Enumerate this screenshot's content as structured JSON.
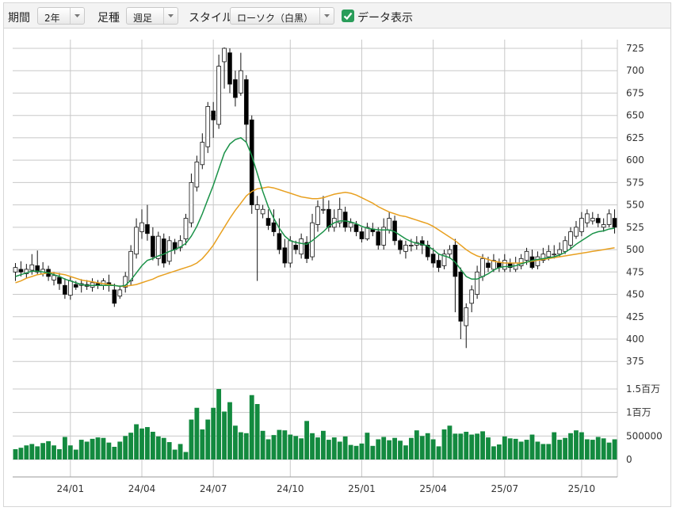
{
  "toolbar": {
    "period_label": "期間",
    "period_value": "2年",
    "interval_label": "足種",
    "interval_value": "週足",
    "style_label": "スタイル",
    "style_value": "ローソク（白黒）",
    "data_display_label": "データ表示",
    "data_display_checked": true
  },
  "colors": {
    "up_candle": "#ffffff",
    "down_candle": "#000000",
    "ma_short": "#1a9248",
    "ma_long": "#e8a020",
    "volume": "#138a3f",
    "grid": "#c8c8c8"
  },
  "chart_data": {
    "type": "candlestick",
    "price_axis": {
      "ticks": [
        725,
        700,
        675,
        650,
        625,
        600,
        575,
        550,
        525,
        500,
        475,
        450,
        425,
        400,
        375
      ]
    },
    "volume_axis": {
      "tick_labels": [
        "1.5百万",
        "1百万",
        "500000",
        "0"
      ],
      "tick_values": [
        1500000,
        1000000,
        500000,
        0
      ]
    },
    "x_tick_labels": [
      "24/01",
      "24/04",
      "24/07",
      "24/10",
      "25/01",
      "25/04",
      "25/07",
      "25/10"
    ],
    "x_tick_index": [
      10,
      23,
      36,
      50,
      63,
      76,
      89,
      103
    ],
    "candles": [
      [
        475,
        480,
        485,
        465
      ],
      [
        478,
        475,
        487,
        470
      ],
      [
        473,
        478,
        484,
        468
      ],
      [
        477,
        483,
        495,
        472
      ],
      [
        482,
        475,
        499,
        472
      ],
      [
        473,
        478,
        486,
        470
      ],
      [
        478,
        470,
        482,
        465
      ],
      [
        466,
        471,
        475,
        460
      ],
      [
        469,
        462,
        474,
        455
      ],
      [
        460,
        450,
        468,
        445
      ],
      [
        449,
        465,
        470,
        444
      ],
      [
        461,
        458,
        465,
        455
      ],
      [
        460,
        462,
        467,
        452
      ],
      [
        461,
        459,
        466,
        455
      ],
      [
        458,
        463,
        468,
        453
      ],
      [
        462,
        460,
        466,
        456
      ],
      [
        460,
        465,
        468,
        455
      ],
      [
        463,
        460,
        472,
        453
      ],
      [
        455,
        440,
        462,
        436
      ],
      [
        448,
        455,
        460,
        445
      ],
      [
        458,
        470,
        475,
        452
      ],
      [
        465,
        498,
        505,
        460
      ],
      [
        495,
        525,
        535,
        490
      ],
      [
        520,
        530,
        545,
        512
      ],
      [
        528,
        518,
        550,
        510
      ],
      [
        515,
        492,
        525,
        488
      ],
      [
        490,
        515,
        520,
        482
      ],
      [
        512,
        485,
        518,
        480
      ],
      [
        487,
        510,
        515,
        483
      ],
      [
        508,
        500,
        512,
        495
      ],
      [
        502,
        510,
        516,
        498
      ],
      [
        512,
        535,
        540,
        505
      ],
      [
        530,
        575,
        585,
        525
      ],
      [
        570,
        598,
        605,
        565
      ],
      [
        595,
        620,
        630,
        590
      ],
      [
        615,
        660,
        665,
        608
      ],
      [
        655,
        645,
        665,
        625
      ],
      [
        640,
        705,
        718,
        635
      ],
      [
        710,
        725,
        726,
        680
      ],
      [
        720,
        685,
        725,
        675
      ],
      [
        690,
        670,
        700,
        660
      ],
      [
        675,
        700,
        720,
        672
      ],
      [
        690,
        640,
        695,
        620
      ],
      [
        645,
        550,
        650,
        540
      ],
      [
        545,
        550,
        560,
        465
      ],
      [
        540,
        545,
        550,
        535
      ],
      [
        535,
        527,
        545,
        522
      ],
      [
        530,
        520,
        545,
        515
      ],
      [
        518,
        500,
        535,
        495
      ],
      [
        502,
        485,
        512,
        480
      ],
      [
        485,
        510,
        515,
        480
      ],
      [
        505,
        500,
        510,
        495
      ],
      [
        495,
        512,
        518,
        490
      ],
      [
        508,
        490,
        515,
        485
      ],
      [
        492,
        530,
        540,
        488
      ],
      [
        528,
        548,
        555,
        520
      ],
      [
        545,
        545,
        560,
        540
      ],
      [
        545,
        525,
        555,
        520
      ],
      [
        525,
        535,
        545,
        520
      ],
      [
        530,
        545,
        558,
        525
      ],
      [
        542,
        525,
        548,
        520
      ],
      [
        525,
        530,
        535,
        520
      ],
      [
        528,
        520,
        532,
        515
      ],
      [
        520,
        512,
        525,
        508
      ],
      [
        512,
        525,
        530,
        510
      ],
      [
        523,
        520,
        530,
        515
      ],
      [
        520,
        505,
        525,
        500
      ],
      [
        505,
        525,
        535,
        500
      ],
      [
        522,
        535,
        542,
        518
      ],
      [
        532,
        510,
        538,
        505
      ],
      [
        510,
        500,
        512,
        495
      ],
      [
        498,
        505,
        510,
        490
      ],
      [
        505,
        505,
        512,
        498
      ],
      [
        505,
        508,
        515,
        500
      ],
      [
        510,
        505,
        515,
        495
      ],
      [
        505,
        492,
        510,
        488
      ],
      [
        495,
        485,
        502,
        480
      ],
      [
        488,
        480,
        495,
        475
      ],
      [
        482,
        495,
        500,
        478
      ],
      [
        495,
        500,
        505,
        490
      ],
      [
        505,
        470,
        512,
        430
      ],
      [
        475,
        420,
        480,
        400
      ],
      [
        415,
        435,
        440,
        390
      ],
      [
        440,
        455,
        460,
        430
      ],
      [
        450,
        475,
        482,
        445
      ],
      [
        470,
        490,
        495,
        465
      ],
      [
        485,
        480,
        492,
        475
      ],
      [
        478,
        488,
        495,
        475
      ],
      [
        485,
        480,
        490,
        475
      ],
      [
        478,
        488,
        495,
        475
      ],
      [
        485,
        480,
        490,
        475
      ],
      [
        478,
        485,
        492,
        475
      ],
      [
        482,
        490,
        495,
        478
      ],
      [
        488,
        498,
        502,
        483
      ],
      [
        492,
        480,
        500,
        478
      ],
      [
        482,
        492,
        498,
        478
      ],
      [
        488,
        495,
        502,
        485
      ],
      [
        492,
        498,
        505,
        488
      ],
      [
        495,
        495,
        505,
        490
      ],
      [
        495,
        500,
        508,
        492
      ],
      [
        498,
        510,
        515,
        495
      ],
      [
        505,
        520,
        525,
        500
      ],
      [
        515,
        525,
        532,
        512
      ],
      [
        520,
        535,
        542,
        515
      ],
      [
        530,
        540,
        545,
        525
      ],
      [
        532,
        535,
        542,
        528
      ],
      [
        535,
        530,
        540,
        525
      ],
      [
        525,
        528,
        535,
        520
      ],
      [
        528,
        540,
        545,
        525
      ],
      [
        535,
        525,
        545,
        518
      ]
    ],
    "ma_short": [
      470,
      472,
      474,
      476,
      476,
      475,
      474,
      472,
      470,
      467,
      465,
      463,
      461,
      460,
      460,
      460,
      460,
      460,
      460,
      459,
      460,
      466,
      474,
      482,
      488,
      490,
      493,
      495,
      498,
      500,
      503,
      507,
      515,
      526,
      540,
      556,
      572,
      590,
      608,
      618,
      623,
      625,
      620,
      605,
      585,
      565,
      548,
      535,
      524,
      515,
      510,
      508,
      507,
      506,
      510,
      515,
      520,
      526,
      530,
      532,
      532,
      531,
      529,
      526,
      524,
      523,
      522,
      522,
      522,
      520,
      516,
      512,
      509,
      507,
      506,
      504,
      500,
      495,
      493,
      491,
      486,
      478,
      470,
      467,
      467,
      470,
      473,
      477,
      480,
      481,
      481,
      482,
      484,
      486,
      488,
      489,
      490,
      491,
      492,
      494,
      497,
      501,
      506,
      510,
      514,
      518,
      520,
      521,
      523,
      524
    ],
    "ma_long": [
      463,
      465,
      468,
      470,
      472,
      473,
      474,
      474,
      473,
      472,
      470,
      468,
      466,
      465,
      464,
      463,
      462,
      461,
      460,
      459,
      459,
      460,
      461,
      463,
      465,
      467,
      470,
      472,
      474,
      476,
      478,
      480,
      482,
      485,
      490,
      497,
      505,
      515,
      525,
      535,
      544,
      552,
      560,
      565,
      568,
      569,
      570,
      569,
      567,
      565,
      563,
      561,
      559,
      558,
      557,
      557,
      558,
      560,
      562,
      563,
      564,
      563,
      561,
      558,
      555,
      552,
      548,
      545,
      542,
      540,
      538,
      537,
      535,
      533,
      531,
      529,
      526,
      522,
      518,
      514,
      510,
      505,
      500,
      496,
      493,
      491,
      489,
      487,
      486,
      485,
      485,
      485,
      485,
      486,
      487,
      488,
      489,
      490,
      491,
      492,
      493,
      494,
      495,
      496,
      497,
      498,
      499,
      500,
      501,
      502
    ],
    "volume": [
      220000,
      250000,
      300000,
      330000,
      280000,
      350000,
      390000,
      300000,
      220000,
      480000,
      300000,
      210000,
      420000,
      380000,
      440000,
      470000,
      460000,
      360000,
      270000,
      380000,
      500000,
      570000,
      750000,
      660000,
      690000,
      590000,
      490000,
      460000,
      370000,
      210000,
      330000,
      160000,
      850000,
      1100000,
      640000,
      850000,
      1100000,
      1500000,
      1020000,
      1220000,
      720000,
      580000,
      560000,
      1370000,
      1180000,
      610000,
      430000,
      520000,
      630000,
      620000,
      530000,
      500000,
      450000,
      820000,
      560000,
      470000,
      610000,
      420000,
      470000,
      380000,
      490000,
      310000,
      290000,
      340000,
      570000,
      290000,
      430000,
      480000,
      410000,
      460000,
      400000,
      300000,
      460000,
      620000,
      500000,
      560000,
      430000,
      280000,
      640000,
      720000,
      550000,
      550000,
      590000,
      530000,
      550000,
      600000,
      470000,
      280000,
      320000,
      490000,
      450000,
      440000,
      380000,
      420000,
      530000,
      380000,
      330000,
      330000,
      580000,
      420000,
      460000,
      560000,
      620000,
      580000,
      430000,
      420000,
      480000,
      450000,
      360000,
      430000
    ]
  }
}
